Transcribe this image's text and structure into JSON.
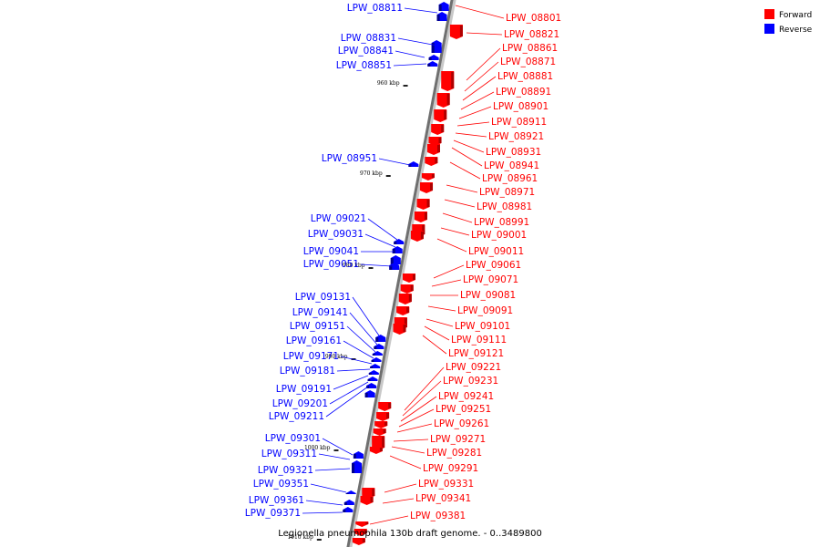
{
  "legend": {
    "items": [
      {
        "label": "Forward",
        "color": "#ff0000"
      },
      {
        "label": "Reverse",
        "color": "#0000ff"
      }
    ]
  },
  "caption": "Legionella pneumophila 130b draft genome. - 0..3489800",
  "scale_ticks": [
    "960 kbp",
    "970 kbp",
    "980 kbp",
    "990 kbp",
    "1000 kbp",
    "1010 kbp"
  ],
  "reverse_genes": [
    "LPW_08811",
    "LPW_08831",
    "LPW_08841",
    "LPW_08851",
    "LPW_08951",
    "LPW_09021",
    "LPW_09031",
    "LPW_09041",
    "LPW_09051",
    "LPW_09131",
    "LPW_09141",
    "LPW_09151",
    "LPW_09161",
    "LPW_09171",
    "LPW_09181",
    "LPW_09191",
    "LPW_09201",
    "LPW_09211",
    "LPW_09301",
    "LPW_09311",
    "LPW_09321",
    "LPW_09351",
    "LPW_09361",
    "LPW_09371"
  ],
  "forward_genes": [
    "LPW_08801",
    "LPW_08821",
    "LPW_08861",
    "LPW_08871",
    "LPW_08881",
    "LPW_08891",
    "LPW_08901",
    "LPW_08911",
    "LPW_08921",
    "LPW_08931",
    "LPW_08941",
    "LPW_08961",
    "LPW_08971",
    "LPW_08981",
    "LPW_08991",
    "LPW_09001",
    "LPW_09011",
    "LPW_09061",
    "LPW_09071",
    "LPW_09081",
    "LPW_09091",
    "LPW_09101",
    "LPW_09111",
    "LPW_09121",
    "LPW_09221",
    "LPW_09231",
    "LPW_09241",
    "LPW_09251",
    "LPW_09261",
    "LPW_09271",
    "LPW_09281",
    "LPW_09291",
    "LPW_09331",
    "LPW_09341",
    "LPW_09381"
  ]
}
